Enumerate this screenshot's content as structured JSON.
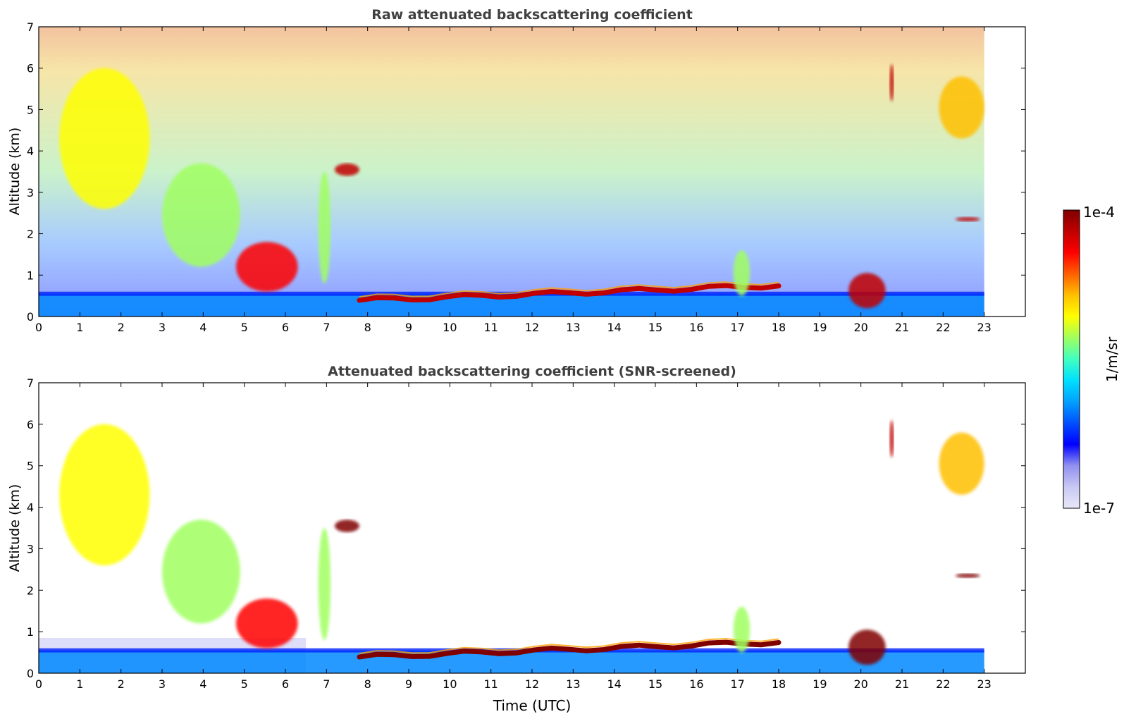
{
  "chart_data": [
    {
      "type": "heatmap",
      "title": "Raw attenuated backscattering coefficient",
      "xlabel": "",
      "ylabel": "Altitude (km)",
      "xlim": [
        0,
        24
      ],
      "ylim": [
        0,
        7
      ],
      "x_ticks": [
        "0",
        "1",
        "2",
        "3",
        "4",
        "5",
        "6",
        "7",
        "8",
        "9",
        "10",
        "11",
        "12",
        "13",
        "14",
        "15",
        "16",
        "17",
        "18",
        "19",
        "20",
        "21",
        "22",
        "23"
      ],
      "y_ticks": [
        "0",
        "1",
        "2",
        "3",
        "4",
        "5",
        "6",
        "7"
      ],
      "data_extent_x": [
        0,
        23
      ],
      "colorscale": "jet-log",
      "features": [
        {
          "kind": "cloud",
          "x": [
            0.5,
            2.7
          ],
          "y": [
            2.6,
            6.0
          ],
          "level": 0.65
        },
        {
          "kind": "cloud",
          "x": [
            3.0,
            4.9
          ],
          "y": [
            1.2,
            3.7
          ],
          "level": 0.6
        },
        {
          "kind": "cloud",
          "x": [
            4.8,
            6.3
          ],
          "y": [
            0.6,
            1.8
          ],
          "level": 0.85
        },
        {
          "kind": "cloud",
          "x": [
            6.8,
            7.1
          ],
          "y": [
            0.8,
            3.5
          ],
          "level": 0.55
        },
        {
          "kind": "cloud",
          "x": [
            7.2,
            7.8
          ],
          "y": [
            3.4,
            3.7
          ],
          "level": 0.95
        },
        {
          "kind": "layer",
          "x": [
            7.8,
            18.0
          ],
          "y": [
            0.35,
            0.75
          ],
          "level": 0.95
        },
        {
          "kind": "cloud",
          "x": [
            16.9,
            17.3
          ],
          "y": [
            0.5,
            1.6
          ],
          "level": 0.6
        },
        {
          "kind": "cloud",
          "x": [
            19.7,
            20.6
          ],
          "y": [
            0.2,
            1.05
          ],
          "level": 0.95
        },
        {
          "kind": "cloud",
          "x": [
            20.7,
            20.8
          ],
          "y": [
            5.2,
            6.1
          ],
          "level": 0.9
        },
        {
          "kind": "cloud",
          "x": [
            21.9,
            23.0
          ],
          "y": [
            4.3,
            5.8
          ],
          "level": 0.7
        },
        {
          "kind": "cloud",
          "x": [
            22.3,
            22.9
          ],
          "y": [
            2.3,
            2.4
          ],
          "level": 0.95
        }
      ]
    },
    {
      "type": "heatmap",
      "title": "Attenuated backscattering coefficient (SNR-screened)",
      "xlabel": "Time (UTC)",
      "ylabel": "Altitude (km)",
      "xlim": [
        0,
        24
      ],
      "ylim": [
        0,
        7
      ],
      "x_ticks": [
        "0",
        "1",
        "2",
        "3",
        "4",
        "5",
        "6",
        "7",
        "8",
        "9",
        "10",
        "11",
        "12",
        "13",
        "14",
        "15",
        "16",
        "17",
        "18",
        "19",
        "20",
        "21",
        "22",
        "23"
      ],
      "y_ticks": [
        "0",
        "1",
        "2",
        "3",
        "4",
        "5",
        "6",
        "7"
      ],
      "data_extent_x": [
        0,
        23
      ],
      "colorscale": "jet-log",
      "features": [
        {
          "kind": "cloud",
          "x": [
            0.5,
            2.7
          ],
          "y": [
            2.6,
            6.0
          ],
          "level": 0.65
        },
        {
          "kind": "cloud",
          "x": [
            3.0,
            4.9
          ],
          "y": [
            1.2,
            3.7
          ],
          "level": 0.6
        },
        {
          "kind": "cloud",
          "x": [
            4.8,
            6.3
          ],
          "y": [
            0.6,
            1.8
          ],
          "level": 0.85
        },
        {
          "kind": "cloud",
          "x": [
            6.8,
            7.1
          ],
          "y": [
            0.8,
            3.5
          ],
          "level": 0.55
        },
        {
          "kind": "cloud",
          "x": [
            7.2,
            7.8
          ],
          "y": [
            3.4,
            3.7
          ],
          "level": 1.0
        },
        {
          "kind": "layer",
          "x": [
            7.8,
            18.0
          ],
          "y": [
            0.35,
            0.75
          ],
          "level": 1.0
        },
        {
          "kind": "cloud",
          "x": [
            16.9,
            17.3
          ],
          "y": [
            0.5,
            1.6
          ],
          "level": 0.6
        },
        {
          "kind": "cloud",
          "x": [
            19.7,
            20.6
          ],
          "y": [
            0.2,
            1.05
          ],
          "level": 1.0
        },
        {
          "kind": "cloud",
          "x": [
            20.7,
            20.8
          ],
          "y": [
            5.2,
            6.1
          ],
          "level": 0.95
        },
        {
          "kind": "cloud",
          "x": [
            21.9,
            23.0
          ],
          "y": [
            4.3,
            5.8
          ],
          "level": 0.7
        },
        {
          "kind": "cloud",
          "x": [
            22.3,
            22.9
          ],
          "y": [
            2.3,
            2.4
          ],
          "level": 1.0
        }
      ]
    }
  ],
  "colorbar": {
    "label": "1/m/sr",
    "max_label": "1e-4",
    "min_label": "1e-7",
    "colors": [
      "#e8e8f8",
      "#c8c8f4",
      "#9090f0",
      "#0000ff",
      "#0050ff",
      "#00a0ff",
      "#00e0ff",
      "#40ffc0",
      "#a0ff60",
      "#ffff00",
      "#ffc000",
      "#ff6000",
      "#ff0000",
      "#c00000",
      "#800000"
    ]
  }
}
